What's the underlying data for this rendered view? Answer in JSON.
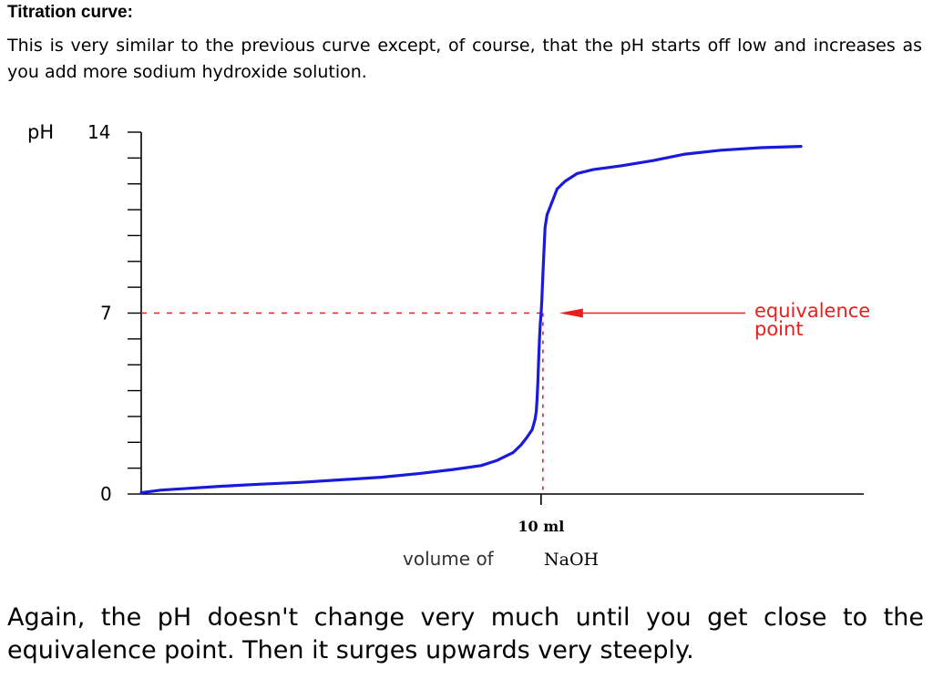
{
  "heading": "Titration curve:",
  "intro": "This is very similar to the previous curve except, of course, that the pH starts off low and increases as you add more sodium hydroxide solution.",
  "outro": "Again, the pH doesn't change very much until you get close to the equivalence point. Then it surges upwards very steeply.",
  "colors": {
    "curve": "#1a1adc",
    "annotation": "#e8201f",
    "axis": "#000000"
  },
  "chart_data": {
    "type": "line",
    "title": "",
    "ylabel": "pH",
    "xlabel_parts": [
      "volume of",
      "NaOH"
    ],
    "ylim": [
      0,
      14
    ],
    "xlim": [
      0,
      17.5
    ],
    "y_ticks": [
      {
        "value": 0,
        "label": "0"
      },
      {
        "value": 7,
        "label": "7"
      },
      {
        "value": 14,
        "label": "14"
      }
    ],
    "y_minor_step": 1,
    "x_ticks": [
      {
        "value": 10,
        "label": "10 ml"
      }
    ],
    "series": [
      {
        "x": [
          0,
          0.5,
          1.0,
          2.0,
          3.0,
          4.0,
          5.0,
          6.0,
          7.0,
          7.8,
          8.5,
          8.9,
          9.3,
          9.5,
          9.65,
          9.78,
          9.85,
          9.88,
          9.9,
          9.92,
          9.94,
          9.96,
          9.98,
          10.0,
          10.02,
          10.04,
          10.06,
          10.1,
          10.15,
          10.25,
          10.4,
          10.6,
          10.9,
          11.3,
          12.0,
          12.8,
          13.6,
          14.5,
          15.5,
          16.5
        ],
        "y": [
          0.05,
          0.15,
          0.2,
          0.3,
          0.38,
          0.45,
          0.55,
          0.65,
          0.8,
          0.95,
          1.1,
          1.3,
          1.6,
          1.9,
          2.2,
          2.5,
          2.9,
          3.2,
          3.7,
          4.3,
          5.2,
          6.0,
          6.6,
          7.0,
          7.5,
          8.3,
          9.0,
          10.3,
          10.8,
          11.2,
          11.8,
          12.1,
          12.4,
          12.55,
          12.7,
          12.9,
          13.15,
          13.3,
          13.4,
          13.45
        ]
      }
    ],
    "equivalence_point": {
      "x": 10,
      "y": 7
    },
    "annotations": [
      {
        "lines": [
          "equivalence",
          "point"
        ],
        "points_to": {
          "x": 10,
          "y": 7
        }
      }
    ],
    "grid": false
  }
}
